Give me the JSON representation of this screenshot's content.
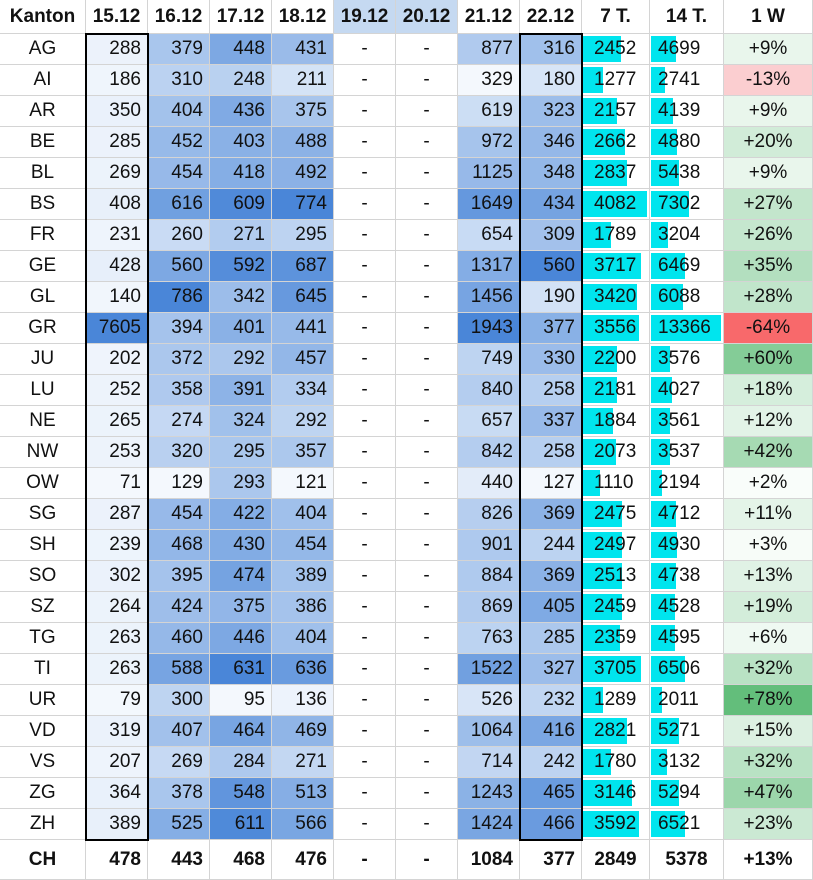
{
  "headers": [
    "Kanton",
    "15.12",
    "16.12",
    "17.12",
    "18.12",
    "19.12",
    "20.12",
    "21.12",
    "22.12",
    "7 T.",
    "14 T.",
    "1 W"
  ],
  "rows": [
    {
      "k": "AG",
      "d": [
        "288",
        "379",
        "448",
        "431",
        "-",
        "-",
        "877",
        "316"
      ],
      "w7": "2452",
      "w14": "4699",
      "ch": "+9%"
    },
    {
      "k": "AI",
      "d": [
        "186",
        "310",
        "248",
        "211",
        "-",
        "-",
        "329",
        "180"
      ],
      "w7": "1277",
      "w14": "2741",
      "ch": "-13%"
    },
    {
      "k": "AR",
      "d": [
        "350",
        "404",
        "436",
        "375",
        "-",
        "-",
        "619",
        "323"
      ],
      "w7": "2157",
      "w14": "4139",
      "ch": "+9%"
    },
    {
      "k": "BE",
      "d": [
        "285",
        "452",
        "403",
        "488",
        "-",
        "-",
        "972",
        "346"
      ],
      "w7": "2662",
      "w14": "4880",
      "ch": "+20%"
    },
    {
      "k": "BL",
      "d": [
        "269",
        "454",
        "418",
        "492",
        "-",
        "-",
        "1125",
        "348"
      ],
      "w7": "2837",
      "w14": "5438",
      "ch": "+9%"
    },
    {
      "k": "BS",
      "d": [
        "408",
        "616",
        "609",
        "774",
        "-",
        "-",
        "1649",
        "434"
      ],
      "w7": "4082",
      "w14": "7302",
      "ch": "+27%"
    },
    {
      "k": "FR",
      "d": [
        "231",
        "260",
        "271",
        "295",
        "-",
        "-",
        "654",
        "309"
      ],
      "w7": "1789",
      "w14": "3204",
      "ch": "+26%"
    },
    {
      "k": "GE",
      "d": [
        "428",
        "560",
        "592",
        "687",
        "-",
        "-",
        "1317",
        "560"
      ],
      "w7": "3717",
      "w14": "6469",
      "ch": "+35%"
    },
    {
      "k": "GL",
      "d": [
        "140",
        "786",
        "342",
        "645",
        "-",
        "-",
        "1456",
        "190"
      ],
      "w7": "3420",
      "w14": "6088",
      "ch": "+28%"
    },
    {
      "k": "GR",
      "d": [
        "7605",
        "394",
        "401",
        "441",
        "-",
        "-",
        "1943",
        "377"
      ],
      "w7": "3556",
      "w14": "13366",
      "ch": "-64%"
    },
    {
      "k": "JU",
      "d": [
        "202",
        "372",
        "292",
        "457",
        "-",
        "-",
        "749",
        "330"
      ],
      "w7": "2200",
      "w14": "3576",
      "ch": "+60%"
    },
    {
      "k": "LU",
      "d": [
        "252",
        "358",
        "391",
        "334",
        "-",
        "-",
        "840",
        "258"
      ],
      "w7": "2181",
      "w14": "4027",
      "ch": "+18%"
    },
    {
      "k": "NE",
      "d": [
        "265",
        "274",
        "324",
        "292",
        "-",
        "-",
        "657",
        "337"
      ],
      "w7": "1884",
      "w14": "3561",
      "ch": "+12%"
    },
    {
      "k": "NW",
      "d": [
        "253",
        "320",
        "295",
        "357",
        "-",
        "-",
        "842",
        "258"
      ],
      "w7": "2073",
      "w14": "3537",
      "ch": "+42%"
    },
    {
      "k": "OW",
      "d": [
        "71",
        "129",
        "293",
        "121",
        "-",
        "-",
        "440",
        "127"
      ],
      "w7": "1110",
      "w14": "2194",
      "ch": "+2%"
    },
    {
      "k": "SG",
      "d": [
        "287",
        "454",
        "422",
        "404",
        "-",
        "-",
        "826",
        "369"
      ],
      "w7": "2475",
      "w14": "4712",
      "ch": "+11%"
    },
    {
      "k": "SH",
      "d": [
        "239",
        "468",
        "430",
        "454",
        "-",
        "-",
        "901",
        "244"
      ],
      "w7": "2497",
      "w14": "4930",
      "ch": "+3%"
    },
    {
      "k": "SO",
      "d": [
        "302",
        "395",
        "474",
        "389",
        "-",
        "-",
        "884",
        "369"
      ],
      "w7": "2513",
      "w14": "4738",
      "ch": "+13%"
    },
    {
      "k": "SZ",
      "d": [
        "264",
        "424",
        "375",
        "386",
        "-",
        "-",
        "869",
        "405"
      ],
      "w7": "2459",
      "w14": "4528",
      "ch": "+19%"
    },
    {
      "k": "TG",
      "d": [
        "263",
        "460",
        "446",
        "404",
        "-",
        "-",
        "763",
        "285"
      ],
      "w7": "2359",
      "w14": "4595",
      "ch": "+6%"
    },
    {
      "k": "TI",
      "d": [
        "263",
        "588",
        "631",
        "636",
        "-",
        "-",
        "1522",
        "327"
      ],
      "w7": "3705",
      "w14": "6506",
      "ch": "+32%"
    },
    {
      "k": "UR",
      "d": [
        "79",
        "300",
        "95",
        "136",
        "-",
        "-",
        "526",
        "232"
      ],
      "w7": "1289",
      "w14": "2011",
      "ch": "+78%"
    },
    {
      "k": "VD",
      "d": [
        "319",
        "407",
        "464",
        "469",
        "-",
        "-",
        "1064",
        "416"
      ],
      "w7": "2821",
      "w14": "5271",
      "ch": "+15%"
    },
    {
      "k": "VS",
      "d": [
        "207",
        "269",
        "284",
        "271",
        "-",
        "-",
        "714",
        "242"
      ],
      "w7": "1780",
      "w14": "3132",
      "ch": "+32%"
    },
    {
      "k": "ZG",
      "d": [
        "364",
        "378",
        "548",
        "513",
        "-",
        "-",
        "1243",
        "465"
      ],
      "w7": "3146",
      "w14": "5294",
      "ch": "+47%"
    },
    {
      "k": "ZH",
      "d": [
        "389",
        "525",
        "611",
        "566",
        "-",
        "-",
        "1424",
        "466"
      ],
      "w7": "3592",
      "w14": "6521",
      "ch": "+23%"
    }
  ],
  "total": {
    "k": "CH",
    "d": [
      "478",
      "443",
      "468",
      "476",
      "-",
      "-",
      "1084",
      "377"
    ],
    "w7": "2849",
    "w14": "5378",
    "ch": "+13%"
  },
  "colors": {
    "blue_low": "#f4f8fd",
    "blue_high": "#4a86d8",
    "bar": "#00e5ee",
    "green_low": "#ffffff",
    "green_high": "#63be7b",
    "red_low": "#fbdfe2",
    "red_high": "#f8696b",
    "header_highlight": "#c5d9f1",
    "grid": "#d4d4d4",
    "frame": "#000000"
  },
  "chart_data": {
    "type": "table",
    "columns": [
      "Kanton",
      "15.12",
      "16.12",
      "17.12",
      "18.12",
      "19.12",
      "20.12",
      "21.12",
      "22.12",
      "7 T.",
      "14 T.",
      "1 W"
    ],
    "cells": [
      [
        "AG",
        "288",
        "379",
        "448",
        "431",
        "-",
        "-",
        "877",
        "316",
        "2452",
        "4699",
        "+9%"
      ],
      [
        "AI",
        "186",
        "310",
        "248",
        "211",
        "-",
        "-",
        "329",
        "180",
        "1277",
        "2741",
        "-13%"
      ],
      [
        "AR",
        "350",
        "404",
        "436",
        "375",
        "-",
        "-",
        "619",
        "323",
        "2157",
        "4139",
        "+9%"
      ],
      [
        "BE",
        "285",
        "452",
        "403",
        "488",
        "-",
        "-",
        "972",
        "346",
        "2662",
        "4880",
        "+20%"
      ],
      [
        "BL",
        "269",
        "454",
        "418",
        "492",
        "-",
        "-",
        "1125",
        "348",
        "2837",
        "5438",
        "+9%"
      ],
      [
        "BS",
        "408",
        "616",
        "609",
        "774",
        "-",
        "-",
        "1649",
        "434",
        "4082",
        "7302",
        "+27%"
      ],
      [
        "FR",
        "231",
        "260",
        "271",
        "295",
        "-",
        "-",
        "654",
        "309",
        "1789",
        "3204",
        "+26%"
      ],
      [
        "GE",
        "428",
        "560",
        "592",
        "687",
        "-",
        "-",
        "1317",
        "560",
        "3717",
        "6469",
        "+35%"
      ],
      [
        "GL",
        "140",
        "786",
        "342",
        "645",
        "-",
        "-",
        "1456",
        "190",
        "3420",
        "6088",
        "+28%"
      ],
      [
        "GR",
        "7605",
        "394",
        "401",
        "441",
        "-",
        "-",
        "1943",
        "377",
        "3556",
        "13366",
        "-64%"
      ],
      [
        "JU",
        "202",
        "372",
        "292",
        "457",
        "-",
        "-",
        "749",
        "330",
        "2200",
        "3576",
        "+60%"
      ],
      [
        "LU",
        "252",
        "358",
        "391",
        "334",
        "-",
        "-",
        "840",
        "258",
        "2181",
        "4027",
        "+18%"
      ],
      [
        "NE",
        "265",
        "274",
        "324",
        "292",
        "-",
        "-",
        "657",
        "337",
        "1884",
        "3561",
        "+12%"
      ],
      [
        "NW",
        "253",
        "320",
        "295",
        "357",
        "-",
        "-",
        "842",
        "258",
        "2073",
        "3537",
        "+42%"
      ],
      [
        "OW",
        "71",
        "129",
        "293",
        "121",
        "-",
        "-",
        "440",
        "127",
        "1110",
        "2194",
        "+2%"
      ],
      [
        "SG",
        "287",
        "454",
        "422",
        "404",
        "-",
        "-",
        "826",
        "369",
        "2475",
        "4712",
        "+11%"
      ],
      [
        "SH",
        "239",
        "468",
        "430",
        "454",
        "-",
        "-",
        "901",
        "244",
        "2497",
        "4930",
        "+3%"
      ],
      [
        "SO",
        "302",
        "395",
        "474",
        "389",
        "-",
        "-",
        "884",
        "369",
        "2513",
        "4738",
        "+13%"
      ],
      [
        "SZ",
        "264",
        "424",
        "375",
        "386",
        "-",
        "-",
        "869",
        "405",
        "2459",
        "4528",
        "+19%"
      ],
      [
        "TG",
        "263",
        "460",
        "446",
        "404",
        "-",
        "-",
        "763",
        "285",
        "2359",
        "4595",
        "+6%"
      ],
      [
        "TI",
        "263",
        "588",
        "631",
        "636",
        "-",
        "-",
        "1522",
        "327",
        "3705",
        "6506",
        "+32%"
      ],
      [
        "UR",
        "79",
        "300",
        "95",
        "136",
        "-",
        "-",
        "526",
        "232",
        "1289",
        "2011",
        "+78%"
      ],
      [
        "VD",
        "319",
        "407",
        "464",
        "469",
        "-",
        "-",
        "1064",
        "416",
        "2821",
        "5271",
        "+15%"
      ],
      [
        "VS",
        "207",
        "269",
        "284",
        "271",
        "-",
        "-",
        "714",
        "242",
        "1780",
        "3132",
        "+32%"
      ],
      [
        "ZG",
        "364",
        "378",
        "548",
        "513",
        "-",
        "-",
        "1243",
        "465",
        "3146",
        "5294",
        "+47%"
      ],
      [
        "ZH",
        "389",
        "525",
        "611",
        "566",
        "-",
        "-",
        "1424",
        "466",
        "3592",
        "6521",
        "+23%"
      ],
      [
        "CH",
        "478",
        "443",
        "468",
        "476",
        "-",
        "-",
        "1084",
        "377",
        "2849",
        "5378",
        "+13%"
      ]
    ]
  }
}
